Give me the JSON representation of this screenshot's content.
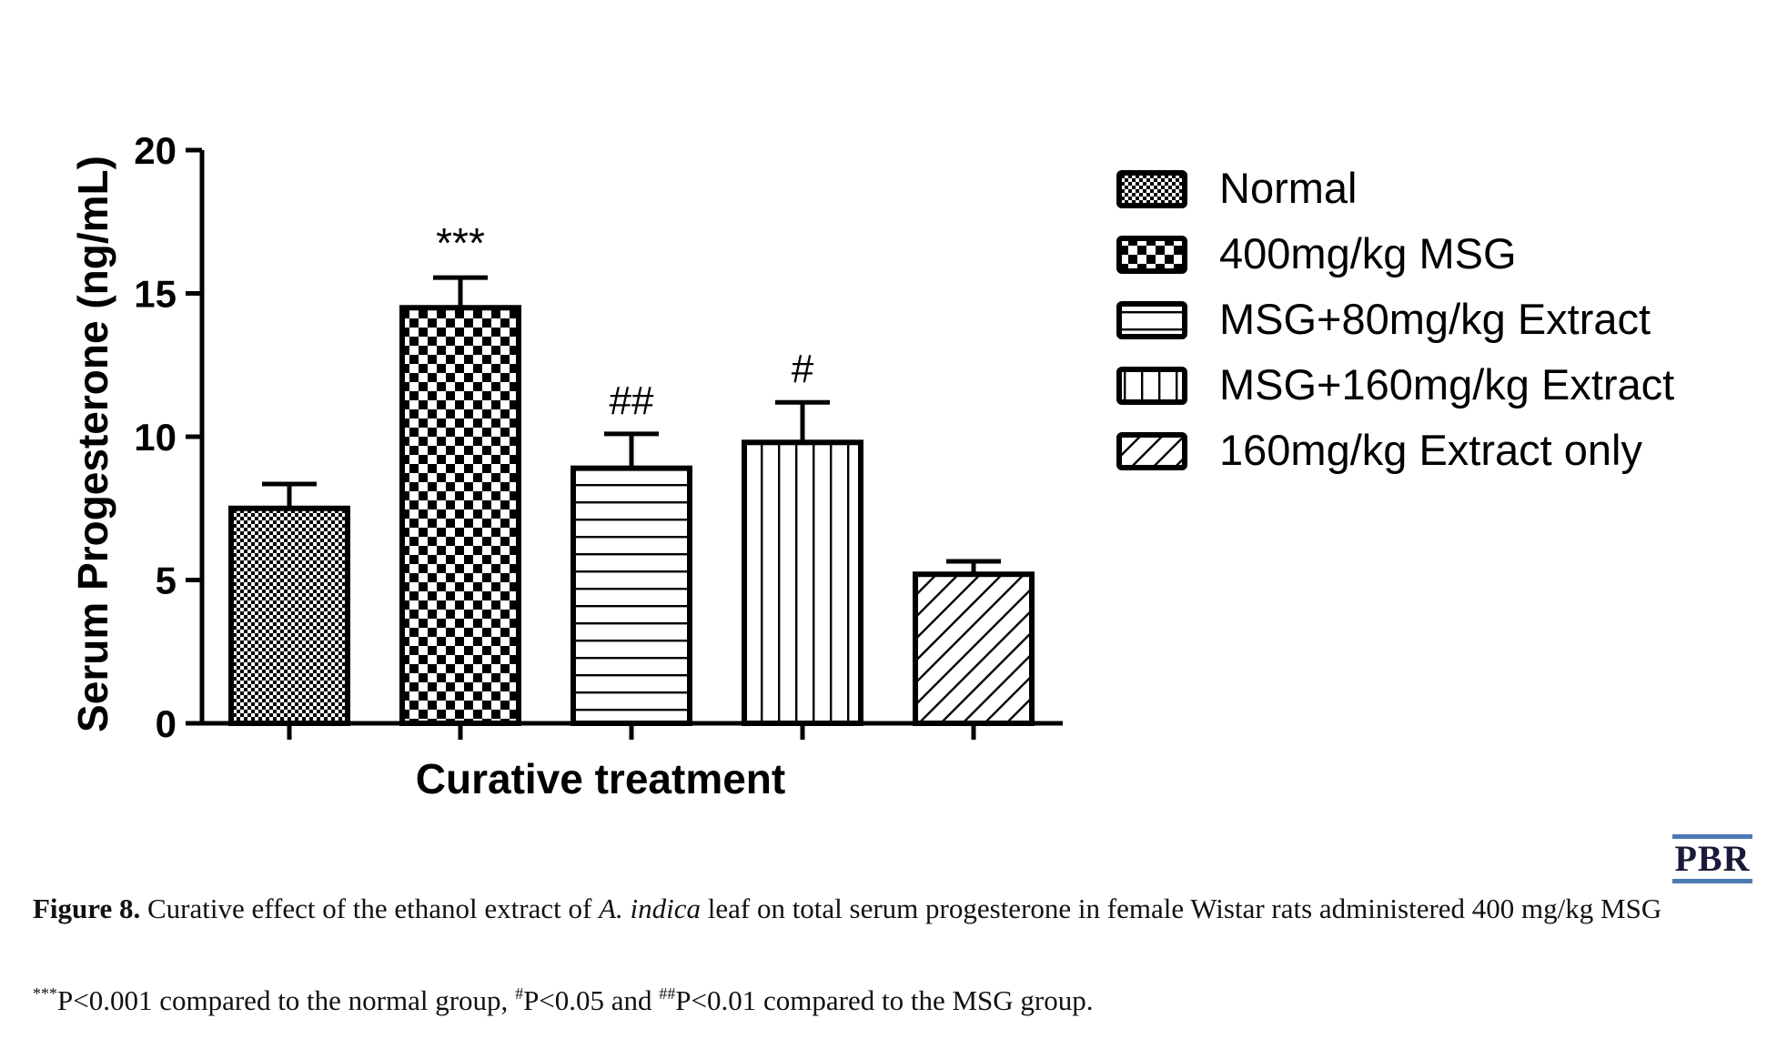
{
  "chart_data": {
    "type": "bar",
    "xlabel": "Curative treatment",
    "ylabel": "Serum Progesterone (ng/mL)",
    "ylim": [
      0,
      20
    ],
    "yticks": [
      "0",
      "5",
      "10",
      "15",
      "20"
    ],
    "grid": false,
    "legend_position": "right",
    "categories": [
      "Normal",
      "400mg/kg MSG",
      "MSG+80mg/kg Extract",
      "MSG+160mg/kg Extract",
      "160mg/kg Extract only"
    ],
    "values": [
      7.5,
      14.5,
      8.9,
      9.8,
      5.2
    ],
    "errors": [
      0.85,
      1.05,
      1.2,
      1.4,
      0.45
    ],
    "annotations": [
      "",
      "***",
      "##",
      "#",
      ""
    ],
    "patterns": [
      "fine-checker",
      "large-checker",
      "horizontal-lines",
      "vertical-lines",
      "diagonal-lines"
    ],
    "colors": {
      "stroke": "#000000",
      "fill": "#ffffff"
    }
  },
  "branding": {
    "logo_text": "PBR"
  },
  "caption": {
    "label": "Figure 8.",
    "text_before": "Curative effect of the ethanol extract of ",
    "species": "A. indica",
    "text_after": " leaf on total serum progesterone in female Wistar rats administered 400 mg/kg MSG"
  },
  "footnote": {
    "mark1": "***",
    "text1": "P<0.001 compared to the normal group, ",
    "mark2": "#",
    "text2": "P<0.05 and ",
    "mark3": "##",
    "text3": "P<0.01 compared to the MSG group."
  }
}
